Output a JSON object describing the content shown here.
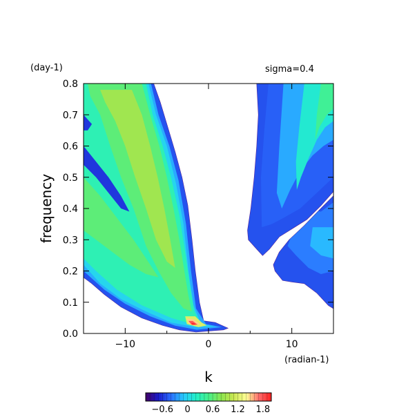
{
  "chart_data": {
    "type": "heatmap",
    "annotation": "sigma=0.4",
    "xlabel": "k",
    "ylabel": "frequency",
    "x_unit": "(radian-1)",
    "y_unit": "(day-1)",
    "xlim": [
      -15,
      15
    ],
    "ylim": [
      0,
      0.8
    ],
    "x_ticks": [
      -10,
      0,
      10
    ],
    "x_tick_labels": [
      "−10",
      "0",
      "10"
    ],
    "y_ticks": [
      0.0,
      0.1,
      0.2,
      0.3,
      0.4,
      0.5,
      0.6,
      0.7,
      0.8
    ],
    "y_tick_labels": [
      "0.0",
      "0.1",
      "0.2",
      "0.3",
      "0.4",
      "0.5",
      "0.6",
      "0.7",
      "0.8"
    ],
    "colorbar": {
      "range": [
        -1.0,
        2.0
      ],
      "tick_values": [
        -0.6,
        0,
        0.6,
        1.2,
        1.8
      ],
      "tick_labels": [
        "−0.6",
        "0",
        "0.6",
        "1.2",
        "1.8"
      ],
      "colors": [
        "#440066",
        "#1a1acc",
        "#2b6eff",
        "#28c8ff",
        "#22f0c8",
        "#46f08c",
        "#8ce650",
        "#c8e650",
        "#ffff96",
        "#ff6e6e",
        "#ff2020"
      ]
    },
    "regions": [
      {
        "name": "westward-fan",
        "boundary": [
          [
            -15,
            0.8
          ],
          [
            -6.6,
            0.8
          ],
          [
            -5.8,
            0.74
          ],
          [
            -4.9,
            0.66
          ],
          [
            -4.0,
            0.58
          ],
          [
            -3.2,
            0.5
          ],
          [
            -2.5,
            0.41
          ],
          [
            -2.0,
            0.3
          ],
          [
            -1.6,
            0.2
          ],
          [
            -1.1,
            0.1
          ],
          [
            -0.6,
            0.04
          ],
          [
            0.8,
            0.035
          ],
          [
            2.3,
            0.017
          ],
          [
            1.8,
            0.012
          ],
          [
            -1.5,
            0.005
          ],
          [
            -3.5,
            0.012
          ],
          [
            -5.5,
            0.026
          ],
          [
            -8,
            0.05
          ],
          [
            -10.5,
            0.085
          ],
          [
            -12.5,
            0.125
          ],
          [
            -14,
            0.16
          ],
          [
            -15,
            0.18
          ]
        ],
        "value": -0.5,
        "layers": [
          {
            "value": -0.2,
            "polygon": [
              [
                -15,
                0.8
              ],
              [
                -6.9,
                0.8
              ],
              [
                -6.0,
                0.7
              ],
              [
                -4.7,
                0.6
              ],
              [
                -3.6,
                0.49
              ],
              [
                -2.7,
                0.35
              ],
              [
                -2.1,
                0.2
              ],
              [
                -1.5,
                0.08
              ],
              [
                -0.3,
                0.03
              ],
              [
                1.6,
                0.02
              ],
              [
                -1.4,
                0.012
              ],
              [
                -4,
                0.025
              ],
              [
                -7,
                0.055
              ],
              [
                -10,
                0.095
              ],
              [
                -12.5,
                0.14
              ],
              [
                -15,
                0.2
              ]
            ]
          },
          {
            "value": 0.0,
            "polygon": [
              [
                -15,
                0.8
              ],
              [
                -7.2,
                0.8
              ],
              [
                -6.3,
                0.7
              ],
              [
                -5.0,
                0.6
              ],
              [
                -3.9,
                0.48
              ],
              [
                -3.0,
                0.35
              ],
              [
                -2.4,
                0.2
              ],
              [
                -1.8,
                0.09
              ],
              [
                -0.9,
                0.03
              ],
              [
                0.8,
                0.022
              ],
              [
                -1.6,
                0.02
              ],
              [
                -4.5,
                0.035
              ],
              [
                -7.5,
                0.07
              ],
              [
                -10.5,
                0.11
              ],
              [
                -13,
                0.16
              ],
              [
                -15,
                0.22
              ]
            ]
          },
          {
            "value": 0.3,
            "polygon": [
              [
                -15,
                0.8
              ],
              [
                -7.5,
                0.8
              ],
              [
                -6.7,
                0.7
              ],
              [
                -5.5,
                0.6
              ],
              [
                -4.5,
                0.5
              ],
              [
                -3.5,
                0.38
              ],
              [
                -2.8,
                0.26
              ],
              [
                -2.2,
                0.15
              ],
              [
                -1.7,
                0.07
              ],
              [
                -1.0,
                0.035
              ],
              [
                -2,
                0.03
              ],
              [
                -4.5,
                0.05
              ],
              [
                -8,
                0.09
              ],
              [
                -11,
                0.14
              ],
              [
                -13.5,
                0.2
              ],
              [
                -15,
                0.24
              ]
            ]
          },
          {
            "value": 0.6,
            "polygon": [
              [
                -14.5,
                0.8
              ],
              [
                -8.0,
                0.8
              ],
              [
                -7.0,
                0.7
              ],
              [
                -5.9,
                0.6
              ],
              [
                -5.0,
                0.5
              ],
              [
                -4.2,
                0.4
              ],
              [
                -3.5,
                0.3
              ],
              [
                -2.9,
                0.2
              ],
              [
                -2.4,
                0.12
              ],
              [
                -2.0,
                0.07
              ],
              [
                -3,
                0.08
              ],
              [
                -4.5,
                0.13
              ],
              [
                -6,
                0.2
              ],
              [
                -7.5,
                0.28
              ],
              [
                -9,
                0.4
              ],
              [
                -10.5,
                0.5
              ],
              [
                -11.8,
                0.6
              ],
              [
                -13,
                0.7
              ],
              [
                -14.2,
                0.76
              ]
            ]
          },
          {
            "value": 0.9,
            "polygon": [
              [
                -13,
                0.78
              ],
              [
                -9.2,
                0.78
              ],
              [
                -8.0,
                0.7
              ],
              [
                -7.0,
                0.6
              ],
              [
                -6.1,
                0.5
              ],
              [
                -5.3,
                0.4
              ],
              [
                -4.6,
                0.3
              ],
              [
                -4.0,
                0.21
              ],
              [
                -5,
                0.23
              ],
              [
                -6.3,
                0.3
              ],
              [
                -7.5,
                0.4
              ],
              [
                -8.8,
                0.5
              ],
              [
                -10,
                0.6
              ],
              [
                -11.2,
                0.68
              ],
              [
                -12.4,
                0.74
              ]
            ]
          },
          {
            "value": 0.6,
            "polygon": [
              [
                -15,
                0.5
              ],
              [
                -13,
                0.44
              ],
              [
                -11,
                0.37
              ],
              [
                -9,
                0.3
              ],
              [
                -7.5,
                0.24
              ],
              [
                -6,
                0.18
              ],
              [
                -7.5,
                0.19
              ],
              [
                -9.5,
                0.22
              ],
              [
                -11.5,
                0.26
              ],
              [
                -13.5,
                0.3
              ],
              [
                -15,
                0.33
              ]
            ]
          },
          {
            "value": 1.2,
            "polygon": [
              [
                -2.8,
                0.055
              ],
              [
                -1.6,
                0.055
              ],
              [
                -0.8,
                0.035
              ],
              [
                -0.2,
                0.026
              ],
              [
                -1.2,
                0.02
              ],
              [
                -2.6,
                0.03
              ]
            ]
          },
          {
            "value": 1.5,
            "polygon": [
              [
                -2.6,
                0.048
              ],
              [
                -1.8,
                0.045
              ],
              [
                -1.0,
                0.03
              ],
              [
                -1.7,
                0.026
              ],
              [
                -2.4,
                0.032
              ]
            ]
          },
          {
            "value": 1.8,
            "polygon": [
              [
                -2.4,
                0.04
              ],
              [
                -1.9,
                0.04
              ],
              [
                -1.3,
                0.028
              ],
              [
                -2.0,
                0.027
              ]
            ]
          },
          {
            "value": 2.0,
            "polygon": [
              [
                -2.1,
                0.034
              ],
              [
                -1.7,
                0.032
              ],
              [
                -1.5,
                0.028
              ],
              [
                -1.9,
                0.029
              ]
            ]
          },
          {
            "value": -0.6,
            "polygon": [
              [
                -15,
                0.6
              ],
              [
                -13.5,
                0.55
              ],
              [
                -12,
                0.5
              ],
              [
                -10.5,
                0.44
              ],
              [
                -9.5,
                0.39
              ],
              [
                -10.5,
                0.4
              ],
              [
                -12,
                0.45
              ],
              [
                -13.5,
                0.5
              ],
              [
                -15,
                0.54
              ]
            ]
          },
          {
            "value": -0.6,
            "polygon": [
              [
                -15,
                0.7
              ],
              [
                -14,
                0.67
              ],
              [
                -14.5,
                0.65
              ],
              [
                -15,
                0.65
              ]
            ]
          }
        ]
      },
      {
        "name": "eastward-upper",
        "boundary": [
          [
            5.8,
            0.8
          ],
          [
            15,
            0.8
          ],
          [
            15,
            0.455
          ],
          [
            13.5,
            0.41
          ],
          [
            11.8,
            0.365
          ],
          [
            10,
            0.335
          ],
          [
            8.5,
            0.31
          ],
          [
            7.3,
            0.27
          ],
          [
            6.5,
            0.25
          ],
          [
            5.8,
            0.27
          ],
          [
            4.8,
            0.3
          ],
          [
            4.7,
            0.33
          ],
          [
            5.1,
            0.4
          ],
          [
            5.5,
            0.5
          ],
          [
            5.8,
            0.6
          ],
          [
            6.0,
            0.7
          ]
        ]
      },
      {
        "name": "eastward-lower",
        "boundary": [
          [
            15,
            0.44
          ],
          [
            13.5,
            0.4
          ],
          [
            11.5,
            0.345
          ],
          [
            9.7,
            0.3
          ],
          [
            8.5,
            0.26
          ],
          [
            7.8,
            0.22
          ],
          [
            8.0,
            0.2
          ],
          [
            8.9,
            0.17
          ],
          [
            10,
            0.165
          ],
          [
            11.5,
            0.16
          ],
          [
            13,
            0.13
          ],
          [
            14.4,
            0.09
          ],
          [
            15,
            0.08
          ]
        ]
      }
    ]
  }
}
